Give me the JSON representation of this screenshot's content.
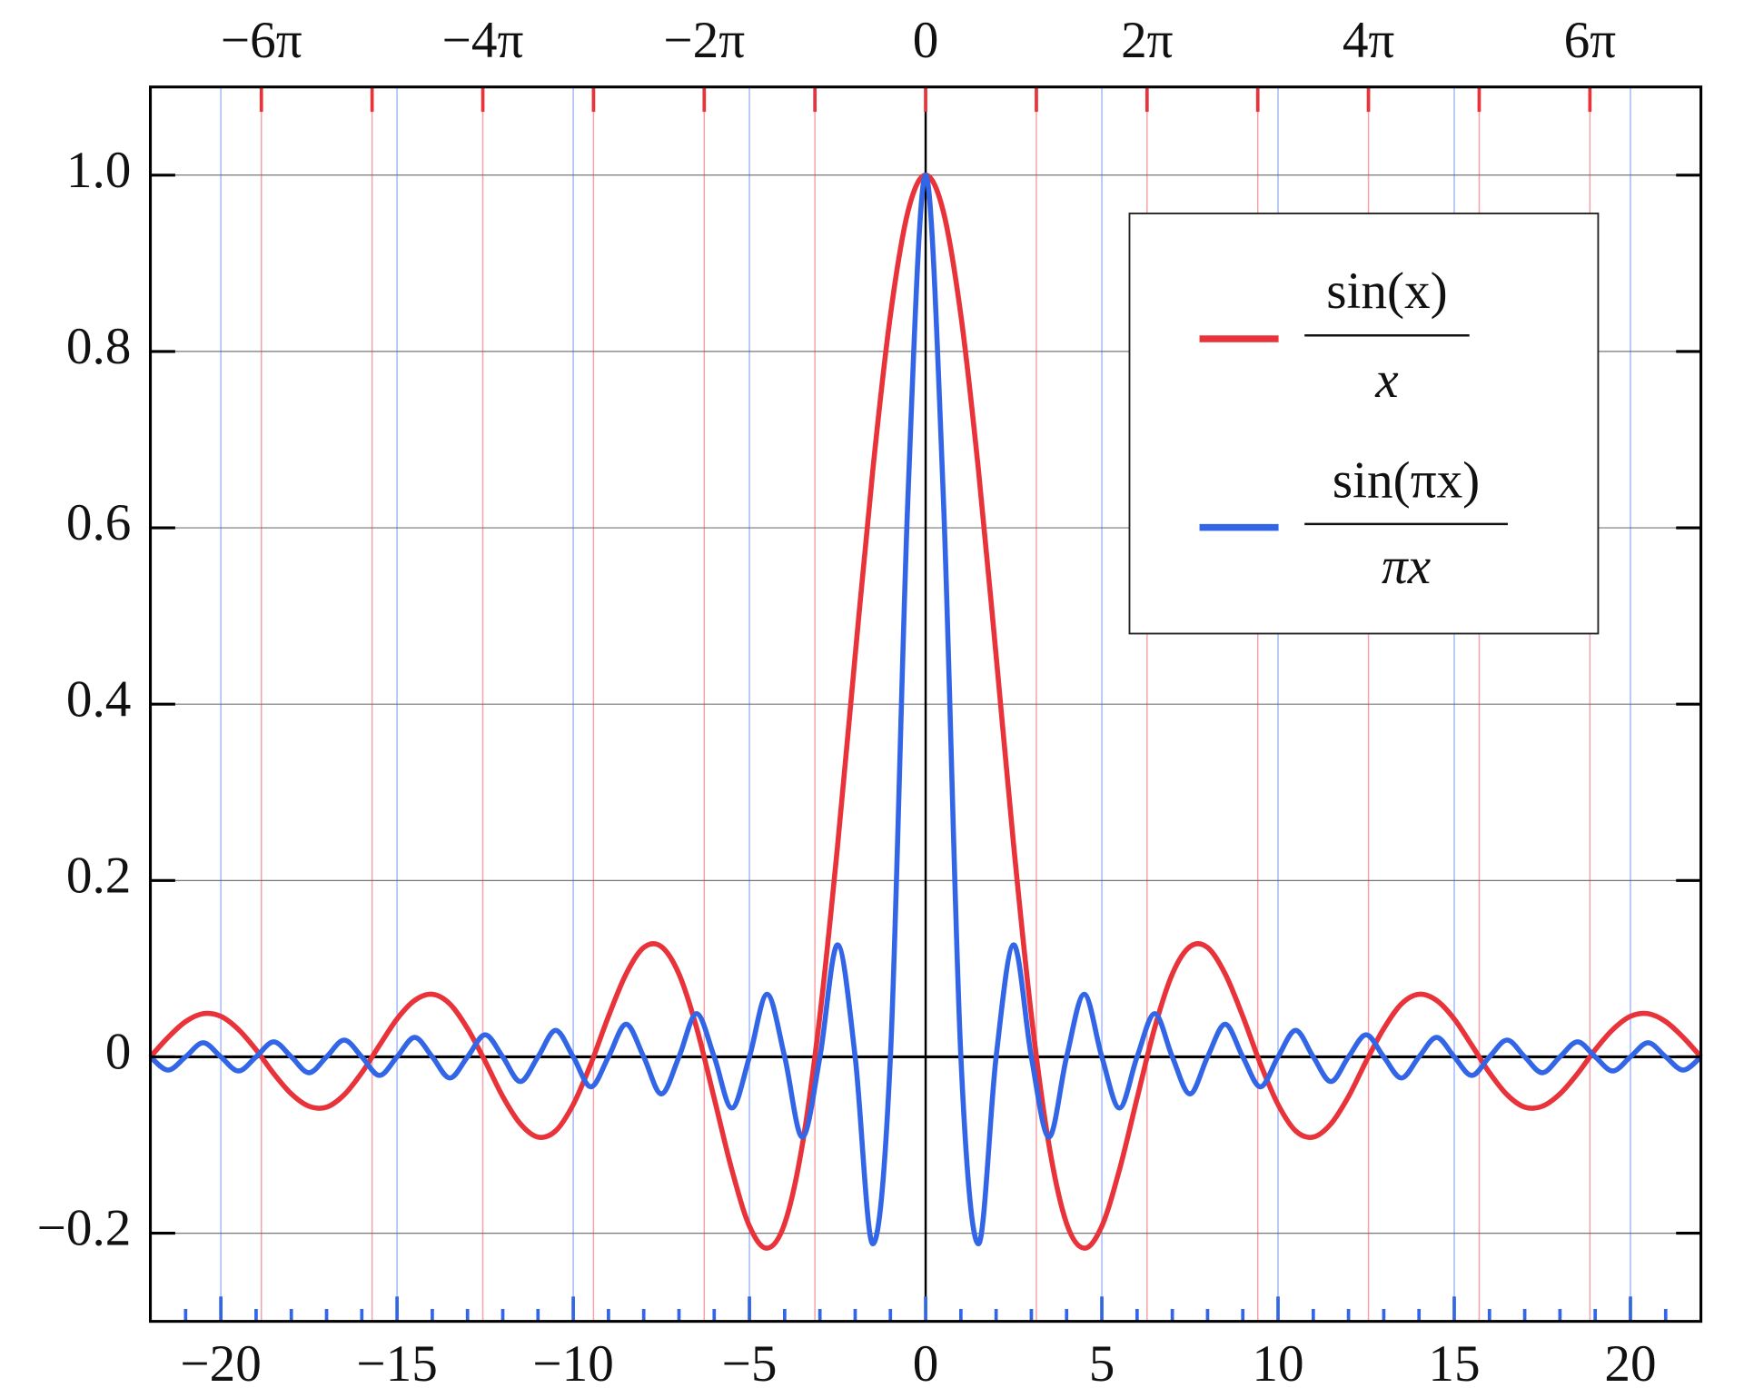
{
  "chart_data": {
    "type": "line",
    "x": [
      -22,
      -21.5,
      -21,
      -20.5,
      -20,
      -19.5,
      -19,
      -18.5,
      -18,
      -17.5,
      -17,
      -16.5,
      -16,
      -15.5,
      -15,
      -14.5,
      -14,
      -13.5,
      -13,
      -12.5,
      -12,
      -11.5,
      -11,
      -10.5,
      -10,
      -9.5,
      -9,
      -8.5,
      -8,
      -7.5,
      -7,
      -6.5,
      -6,
      -5.5,
      -5,
      -4.5,
      -4,
      -3.5,
      -3,
      -2.5,
      -2,
      -1.5,
      -1,
      -0.5,
      0,
      0.5,
      1,
      1.5,
      2,
      2.5,
      3,
      3.5,
      4,
      4.5,
      5,
      5.5,
      6,
      6.5,
      7,
      7.5,
      8,
      8.5,
      9,
      9.5,
      10,
      10.5,
      11,
      11.5,
      12,
      12.5,
      13,
      13.5,
      14,
      14.5,
      15,
      15.5,
      16,
      16.5,
      17,
      17.5,
      18,
      18.5,
      19,
      19.5,
      20,
      20.5,
      21,
      21.5,
      22
    ],
    "series": [
      {
        "name": {
          "numerator": "sin(x)",
          "denominator": "x"
        },
        "color": "#e8333b",
        "values": [
          0,
          0.022,
          0.04,
          0.049,
          0.046,
          0.031,
          0.008,
          -0.019,
          -0.042,
          -0.056,
          -0.057,
          -0.043,
          -0.018,
          0.013,
          0.043,
          0.064,
          0.071,
          0.06,
          0.032,
          -0.005,
          -0.045,
          -0.076,
          -0.091,
          -0.084,
          -0.054,
          -0.008,
          0.046,
          0.094,
          0.124,
          0.125,
          0.094,
          0.033,
          -0.047,
          -0.128,
          -0.192,
          -0.217,
          -0.189,
          -0.1,
          0.047,
          0.239,
          0.455,
          0.665,
          0.841,
          0.959,
          1,
          0.959,
          0.841,
          0.665,
          0.455,
          0.239,
          0.047,
          -0.1,
          -0.189,
          -0.217,
          -0.192,
          -0.128,
          -0.047,
          0.033,
          0.094,
          0.125,
          0.124,
          0.094,
          0.046,
          -0.008,
          -0.054,
          -0.084,
          -0.091,
          -0.076,
          -0.045,
          -0.005,
          0.032,
          0.06,
          0.071,
          0.064,
          0.043,
          0.013,
          -0.018,
          -0.043,
          -0.057,
          -0.056,
          -0.042,
          -0.019,
          0.008,
          0.031,
          0.046,
          0.049,
          0.04,
          0.022,
          0
        ]
      },
      {
        "name": {
          "numerator": "sin(πx)",
          "denominator": "πx"
        },
        "color": "#3366e6",
        "values": [
          0,
          -0.015,
          0,
          0.016,
          0,
          -0.016,
          0,
          0.017,
          0,
          -0.018,
          0,
          0.019,
          0,
          -0.021,
          0,
          0.022,
          0,
          -0.024,
          0,
          0.025,
          0,
          -0.028,
          0,
          0.03,
          0,
          -0.034,
          0,
          0.037,
          0,
          -0.042,
          0,
          0.049,
          0,
          -0.058,
          0,
          0.071,
          0,
          -0.091,
          0,
          0.127,
          0,
          -0.212,
          0,
          0.637,
          1,
          0.637,
          0,
          -0.212,
          0,
          0.127,
          0,
          -0.091,
          0,
          0.071,
          0,
          -0.058,
          0,
          0.049,
          0,
          -0.042,
          0,
          0.037,
          0,
          -0.034,
          0,
          0.03,
          0,
          -0.028,
          0,
          0.025,
          0,
          -0.024,
          0,
          0.022,
          0,
          -0.021,
          0,
          0.019,
          0,
          -0.018,
          0,
          0.017,
          0,
          -0.016,
          0,
          0.016,
          0,
          -0.015,
          0
        ]
      }
    ],
    "xlim": [
      -22,
      22
    ],
    "ylim": [
      -0.3,
      1.1
    ],
    "xticks": [
      {
        "value": -20,
        "label": "−20"
      },
      {
        "value": -15,
        "label": "−15"
      },
      {
        "value": -10,
        "label": "−10"
      },
      {
        "value": -5,
        "label": "−5"
      },
      0,
      5,
      10,
      15,
      20
    ],
    "xminorticks": [
      -21,
      -19,
      -18,
      -17,
      -16,
      -14,
      -13,
      -12,
      -11,
      -9,
      -8,
      -7,
      -6,
      -4,
      -3,
      -2,
      -1,
      1,
      2,
      3,
      4,
      6,
      7,
      8,
      9,
      11,
      12,
      13,
      14,
      16,
      17,
      18,
      19,
      21
    ],
    "x2ticks": [
      {
        "value": -18.85,
        "label": "−6π"
      },
      {
        "value": -12.566,
        "label": "−4π"
      },
      {
        "value": -6.283,
        "label": "−2π"
      },
      0,
      {
        "value": 6.283,
        "label": "2π"
      },
      {
        "value": 12.566,
        "label": "4π"
      },
      {
        "value": 18.85,
        "label": "6π"
      }
    ],
    "x2minorticks": [
      -15.708,
      -9.425,
      -3.142,
      3.142,
      9.425,
      15.708
    ],
    "yticks": [
      {
        "value": -0.2,
        "label": "−0.2"
      },
      0,
      0.2,
      0.4,
      0.6,
      0.8,
      {
        "value": 1,
        "label": "1.0"
      }
    ],
    "grid": true,
    "legend": "upper right"
  }
}
